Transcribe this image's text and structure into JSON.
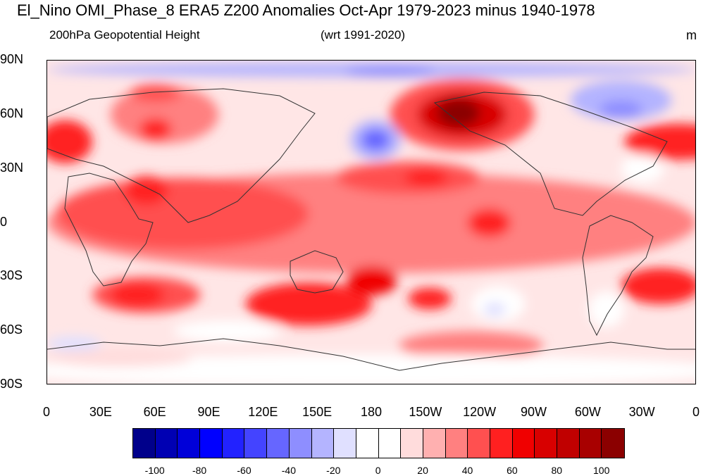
{
  "title": "El_Nino OMI_Phase_8 ERA5 Z200 Anomalies Oct-Apr 1979-2023 minus 1940-1978",
  "subtitle_left": "200hPa Geopotential Height",
  "subtitle_center": "(wrt 1991-2020)",
  "units": "m",
  "lat_labels": [
    "90N",
    "60N",
    "30N",
    "0",
    "30S",
    "60S",
    "90S"
  ],
  "lon_labels": [
    "0",
    "30E",
    "60E",
    "90E",
    "120E",
    "150E",
    "180",
    "150W",
    "120W",
    "90W",
    "60W",
    "30W",
    "0"
  ],
  "colorbar": {
    "colors": [
      "#00008b",
      "#0000b3",
      "#0000d9",
      "#0000ff",
      "#2222ff",
      "#4444ff",
      "#6666ff",
      "#8e8eff",
      "#b4b4ff",
      "#e0e0ff",
      "#ffffff",
      "#ffffff",
      "#ffdcdc",
      "#ffb0b0",
      "#ff8080",
      "#ff5050",
      "#ff2020",
      "#f00000",
      "#d80000",
      "#c00000",
      "#a80000",
      "#8b0000"
    ],
    "tick_labels": [
      "-100",
      "-80",
      "-60",
      "-40",
      "-20",
      "0",
      "20",
      "40",
      "60",
      "80",
      "100"
    ]
  },
  "map": {
    "background_color": "#ffe6e6",
    "features": [
      {
        "name": "tropical-band-red",
        "lon": 180,
        "lat": 0,
        "rx": 180,
        "ry": 28,
        "color": "#ff8080"
      },
      {
        "name": "tropics-indian-red",
        "lon": 75,
        "lat": 5,
        "rx": 70,
        "ry": 20,
        "color": "#ff5050"
      },
      {
        "name": "central-pacific-red",
        "lon": 210,
        "lat": -5,
        "rx": 60,
        "ry": 22,
        "color": "#ff8080"
      },
      {
        "name": "north-pacific-subtropical-high",
        "lon": 200,
        "lat": 25,
        "rx": 40,
        "ry": 9,
        "color": "#ff5050"
      },
      {
        "name": "north-pacific-core",
        "lon": 210,
        "lat": 25,
        "rx": 12,
        "ry": 5,
        "color": "#ff2020"
      },
      {
        "name": "equatorial-east-pacific",
        "lon": 245,
        "lat": 0,
        "rx": 12,
        "ry": 8,
        "color": "#ff2020"
      },
      {
        "name": "arabian-peninsula-red",
        "lon": 55,
        "lat": 18,
        "rx": 12,
        "ry": 8,
        "color": "#ff2020"
      },
      {
        "name": "eastern-atlantic-red",
        "lon": 350,
        "lat": 45,
        "rx": 30,
        "ry": 10,
        "color": "#ff2020"
      },
      {
        "name": "europe-red",
        "lon": 10,
        "lat": 45,
        "rx": 15,
        "ry": 12,
        "color": "#ff2020"
      },
      {
        "name": "siberia-red",
        "lon": 65,
        "lat": 60,
        "rx": 30,
        "ry": 16,
        "color": "#ff8080"
      },
      {
        "name": "central-asia-core",
        "lon": 60,
        "lat": 52,
        "rx": 9,
        "ry": 6,
        "color": "#ff2020"
      },
      {
        "name": "arctic-north-russia-red",
        "lon": 60,
        "lat": 72,
        "rx": 14,
        "ry": 5,
        "color": "#ff5050"
      },
      {
        "name": "alaska-high-outer",
        "lon": 230,
        "lat": 60,
        "rx": 40,
        "ry": 20,
        "color": "#ff5050"
      },
      {
        "name": "alaska-high-mid",
        "lon": 230,
        "lat": 60,
        "rx": 25,
        "ry": 13,
        "color": "#d80000"
      },
      {
        "name": "alaska-high-core",
        "lon": 228,
        "lat": 61,
        "rx": 12,
        "ry": 8,
        "color": "#8b0000"
      },
      {
        "name": "north-pacific-low-outer",
        "lon": 182,
        "lat": 46,
        "rx": 14,
        "ry": 11,
        "color": "#b4b4ff"
      },
      {
        "name": "north-pacific-low-core",
        "lon": 182,
        "lat": 46,
        "rx": 8,
        "ry": 6,
        "color": "#6666ff"
      },
      {
        "name": "greenland-low-outer",
        "lon": 318,
        "lat": 68,
        "rx": 28,
        "ry": 11,
        "color": "#b4b4ff"
      },
      {
        "name": "greenland-low-core",
        "lon": 318,
        "lat": 63,
        "rx": 12,
        "ry": 5,
        "color": "#8e8eff"
      },
      {
        "name": "arctic-blue-band",
        "lon": 180,
        "lat": 85,
        "rx": 180,
        "ry": 4,
        "color": "#b4b4ff"
      },
      {
        "name": "arctic-low-core",
        "lon": 190,
        "lat": 84,
        "rx": 25,
        "ry": 3,
        "color": "#8e8eff"
      },
      {
        "name": "north-atlantic-white",
        "lon": 330,
        "lat": 30,
        "rx": 12,
        "ry": 8,
        "color": "#ffffff"
      },
      {
        "name": "south-indian-red",
        "lon": 55,
        "lat": -40,
        "rx": 30,
        "ry": 10,
        "color": "#ff5050"
      },
      {
        "name": "south-indian-core",
        "lon": 50,
        "lat": -40,
        "rx": 15,
        "ry": 7,
        "color": "#ff2020"
      },
      {
        "name": "australia-south-red",
        "lon": 145,
        "lat": -45,
        "rx": 35,
        "ry": 12,
        "color": "#ff2020"
      },
      {
        "name": "new-zealand-core",
        "lon": 180,
        "lat": -32,
        "rx": 14,
        "ry": 8,
        "color": "#f00000"
      },
      {
        "name": "south-pacific-red",
        "lon": 212,
        "lat": -42,
        "rx": 12,
        "ry": 6,
        "color": "#ff2020"
      },
      {
        "name": "south-atlantic-red",
        "lon": 340,
        "lat": -35,
        "rx": 22,
        "ry": 10,
        "color": "#ff2020"
      },
      {
        "name": "south-pacific-white",
        "lon": 250,
        "lat": -45,
        "rx": 15,
        "ry": 10,
        "color": "#ffffff"
      },
      {
        "name": "south-pacific-blue",
        "lon": 248,
        "lat": -48,
        "rx": 6,
        "ry": 4,
        "color": "#e0e0ff"
      },
      {
        "name": "south-america-white",
        "lon": 310,
        "lat": -48,
        "rx": 10,
        "ry": 10,
        "color": "#ffffff"
      },
      {
        "name": "southern-ocean-white",
        "lon": 100,
        "lat": -60,
        "rx": 30,
        "ry": 6,
        "color": "#ffffff"
      },
      {
        "name": "southern-ocean-red",
        "lon": 235,
        "lat": -68,
        "rx": 40,
        "ry": 8,
        "color": "#ff8080"
      },
      {
        "name": "antarctica-white",
        "lon": 180,
        "lat": -82,
        "rx": 200,
        "ry": 9,
        "color": "#ffffff"
      },
      {
        "name": "west-antarctic-blue",
        "lon": 15,
        "lat": -67,
        "rx": 15,
        "ry": 4,
        "color": "#e0e0ff"
      },
      {
        "name": "antarctic-pink",
        "lon": 40,
        "lat": -75,
        "rx": 40,
        "ry": 5,
        "color": "#ffdcdc"
      }
    ]
  }
}
